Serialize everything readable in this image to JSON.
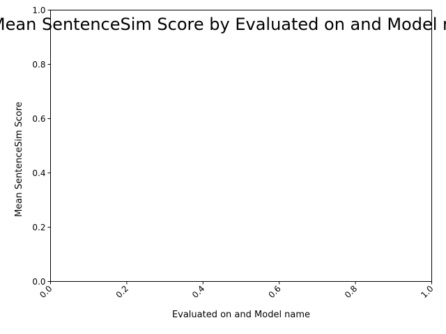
{
  "chart_data": {
    "type": "bar",
    "title": "Mean SentenceSim Score by Evaluated on and Model name",
    "xlabel": "Evaluated on and Model name",
    "ylabel": "Mean SentenceSim Score",
    "categories": [],
    "values": [],
    "xlim": [
      0.0,
      1.0
    ],
    "ylim": [
      0.0,
      1.0
    ],
    "xticks": [
      "0.0",
      "0.2",
      "0.4",
      "0.6",
      "0.8",
      "1.0"
    ],
    "yticks": [
      "0.0",
      "0.2",
      "0.4",
      "0.6",
      "0.8",
      "1.0"
    ],
    "grid": false,
    "legend": null
  }
}
